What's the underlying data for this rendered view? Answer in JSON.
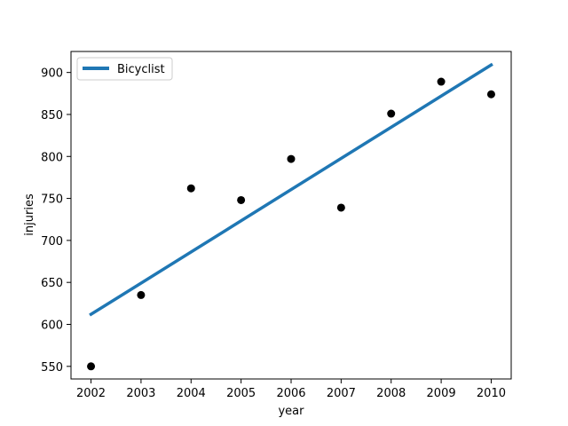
{
  "chart_data": {
    "type": "scatter",
    "title": "",
    "xlabel": "year",
    "ylabel": "injuries",
    "xlim": [
      2001.6,
      2010.4
    ],
    "ylim": [
      535,
      925
    ],
    "xticks": [
      2002,
      2003,
      2004,
      2005,
      2006,
      2007,
      2008,
      2009,
      2010
    ],
    "yticks": [
      550,
      600,
      650,
      700,
      750,
      800,
      850,
      900
    ],
    "grid": false,
    "legend_position": "top-left",
    "series": [
      {
        "kind": "scatter",
        "color": "#000000",
        "x": [
          2002,
          2003,
          2004,
          2005,
          2006,
          2007,
          2008,
          2009,
          2010
        ],
        "y": [
          550,
          635,
          762,
          748,
          797,
          739,
          851,
          889,
          874
        ]
      },
      {
        "kind": "line",
        "name": "Bicyclist",
        "color": "#1f77b4",
        "x": [
          2002,
          2010
        ],
        "y": [
          612,
          909
        ]
      }
    ]
  }
}
